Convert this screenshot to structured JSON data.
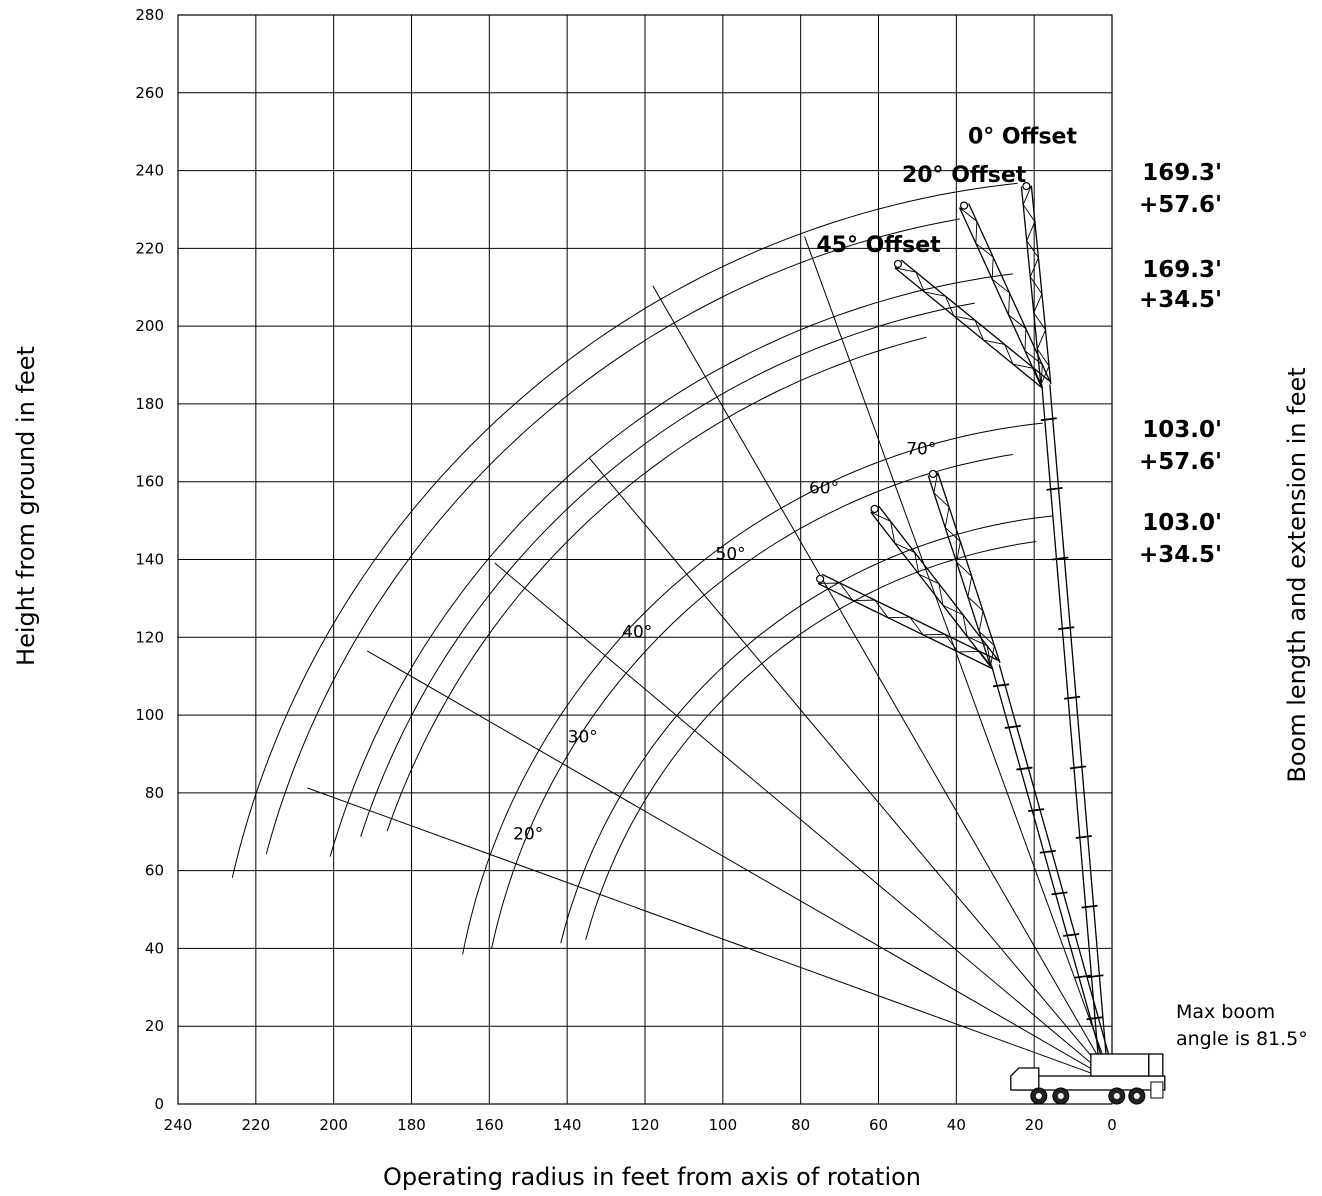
{
  "chart_data": {
    "type": "line",
    "title": "",
    "xlabel": "Operating radius in feet from axis of rotation",
    "ylabel": "Height from ground in feet",
    "y2label": "Boom length and extension in feet",
    "xlim": [
      240,
      0
    ],
    "ylim": [
      0,
      280
    ],
    "x_ticks": [
      240,
      220,
      200,
      180,
      160,
      140,
      120,
      100,
      80,
      60,
      40,
      20,
      0
    ],
    "y_ticks": [
      0,
      20,
      40,
      60,
      80,
      100,
      120,
      140,
      160,
      180,
      200,
      220,
      240,
      260,
      280
    ],
    "grid": true,
    "pivot": {
      "x": 0,
      "y": 6
    },
    "boom_angles": [
      {
        "label": "20°",
        "angle": 20,
        "length": 220
      },
      {
        "label": "30°",
        "angle": 30,
        "length": 221
      },
      {
        "label": "40°",
        "angle": 40,
        "length": 207
      },
      {
        "label": "50°",
        "angle": 50,
        "length": 209
      },
      {
        "label": "60°",
        "angle": 60,
        "length": 236
      },
      {
        "label": "70°",
        "angle": 70,
        "length": 231
      }
    ],
    "angle_label_positions": [
      {
        "label": "20°",
        "x": 150,
        "y": 68
      },
      {
        "label": "30°",
        "x": 136,
        "y": 93
      },
      {
        "label": "40°",
        "x": 122,
        "y": 120
      },
      {
        "label": "50°",
        "x": 98,
        "y": 140
      },
      {
        "label": "60°",
        "x": 74,
        "y": 157
      },
      {
        "label": "70°",
        "x": 49,
        "y": 167
      }
    ],
    "range_arcs": [
      {
        "radius": 232,
        "from_angle": 13,
        "to_angle": 84
      },
      {
        "radius": 225,
        "from_angle": 15,
        "to_angle": 80
      },
      {
        "radius": 209,
        "from_angle": 16,
        "to_angle": 83
      },
      {
        "radius": 203,
        "from_angle": 18,
        "to_angle": 80
      },
      {
        "radius": 197,
        "from_angle": 19,
        "to_angle": 76
      },
      {
        "radius": 170,
        "from_angle": 11,
        "to_angle": 84
      },
      {
        "radius": 163,
        "from_angle": 12,
        "to_angle": 81
      },
      {
        "radius": 146,
        "from_angle": 14,
        "to_angle": 84
      },
      {
        "radius": 140,
        "from_angle": 15,
        "to_angle": 82
      }
    ],
    "jib_configurations": [
      {
        "boom": "169.3'",
        "extension": "+57.6'",
        "offset": "0° Offset",
        "base": {
          "x": 17,
          "y": 185
        },
        "tip": {
          "x": 22,
          "y": 236
        }
      },
      {
        "boom": "169.3'",
        "extension": "+57.6'",
        "offset": "20° Offset",
        "base": {
          "x": 17,
          "y": 185
        },
        "tip": {
          "x": 38,
          "y": 231
        }
      },
      {
        "boom": "169.3'",
        "extension": "+57.6'",
        "offset": "45° Offset",
        "base": {
          "x": 17,
          "y": 185
        },
        "tip": {
          "x": 55,
          "y": 216
        }
      },
      {
        "boom": "103.0'",
        "extension": "+57.6'",
        "offset": "0° Offset",
        "base": {
          "x": 30,
          "y": 113
        },
        "tip": {
          "x": 46,
          "y": 162
        }
      },
      {
        "boom": "103.0'",
        "extension": "+57.6'",
        "offset": "20° Offset",
        "base": {
          "x": 30,
          "y": 113
        },
        "tip": {
          "x": 61,
          "y": 153
        }
      },
      {
        "boom": "103.0'",
        "extension": "+57.6'",
        "offset": "45° Offset",
        "base": {
          "x": 30,
          "y": 113
        },
        "tip": {
          "x": 75,
          "y": 135
        }
      }
    ],
    "offset_labels": [
      {
        "text": "0° Offset",
        "x": 23,
        "y": 247
      },
      {
        "text": "20° Offset",
        "x": 38,
        "y": 237
      },
      {
        "text": "45° Offset",
        "x": 60,
        "y": 219
      }
    ],
    "boom_labels": [
      {
        "length": "169.3'",
        "extension": "+57.6'"
      },
      {
        "length": "169.3'",
        "extension": "+34.5'"
      },
      {
        "length": "103.0'",
        "extension": "+57.6'"
      },
      {
        "length": "103.0'",
        "extension": "+34.5'"
      }
    ],
    "annotation": [
      "Max boom",
      "angle is 81.5°"
    ]
  }
}
